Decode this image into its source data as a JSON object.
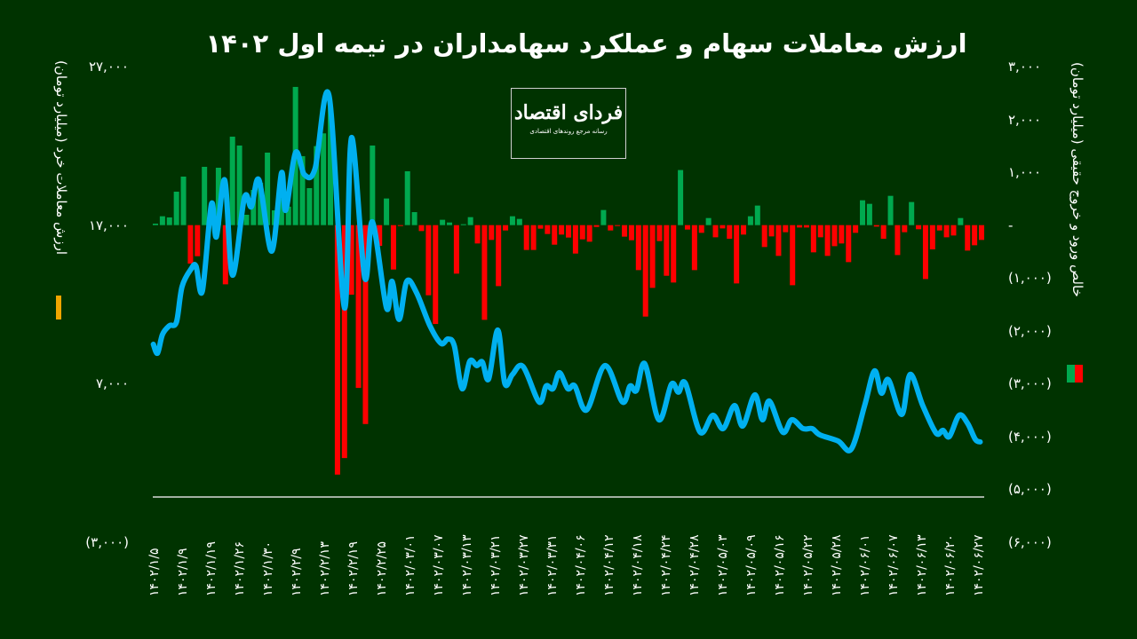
{
  "title": "ارزش معاملات سهام و عملکرد سهامداران در نیمه اول ۱۴۰۲",
  "logo": {
    "main": "فردای اقتصاد",
    "sub": "رسانه مرجع روندهای اقتصادی"
  },
  "colors": {
    "background": "#003300",
    "line": "#00b0f0",
    "positive": "#00a94f",
    "negative": "#ff0000",
    "left_legend": "#f0a500"
  },
  "chart_data": {
    "type": "bar+line",
    "title": "ارزش معاملات سهام و عملکرد سهامداران در نیمه اول ۱۴۰۲",
    "left_axis": {
      "label": "ارزش معاملات خرد (میلیارد تومان)",
      "range": [
        -3000,
        27000
      ],
      "ticks": [
        {
          "v": 27000,
          "label": "۲۷,۰۰۰"
        },
        {
          "v": 17000,
          "label": "۱۷,۰۰۰"
        },
        {
          "v": 7000,
          "label": "۷,۰۰۰"
        },
        {
          "v": -3000,
          "label": "(۳,۰۰۰)"
        }
      ]
    },
    "right_axis": {
      "label": "خالص ورود و خروج حقیقی (میلیارد تومان)",
      "range": [
        -6000,
        3000
      ],
      "ticks": [
        {
          "v": 3000,
          "label": "۳,۰۰۰"
        },
        {
          "v": 2000,
          "label": "۲,۰۰۰"
        },
        {
          "v": 1000,
          "label": "۱,۰۰۰"
        },
        {
          "v": 0,
          "label": "-"
        },
        {
          "v": -1000,
          "label": "(۱,۰۰۰)"
        },
        {
          "v": -2000,
          "label": "(۲,۰۰۰)"
        },
        {
          "v": -3000,
          "label": "(۳,۰۰۰)"
        },
        {
          "v": -4000,
          "label": "(۴,۰۰۰)"
        },
        {
          "v": -5000,
          "label": "(۵,۰۰۰)"
        },
        {
          "v": -6000,
          "label": "(۶,۰۰۰)"
        }
      ]
    },
    "x_tick_labels": [
      "۱۴۰۲/۱/۵",
      "۱۴۰۲/۱/۹",
      "۱۴۰۲/۱/۱۹",
      "۱۴۰۲/۱/۲۶",
      "۱۴۰۲/۱/۳۰",
      "۱۴۰۲/۲/۹",
      "۱۴۰۲/۲/۱۳",
      "۱۴۰۲/۲/۱۹",
      "۱۴۰۲/۲/۲۵",
      "۱۴۰۲/۰۳/۰۱",
      "۱۴۰۲/۰۳/۰۷",
      "۱۴۰۲/۰۳/۱۳",
      "۱۴۰۲/۰۳/۲۱",
      "۱۴۰۲/۰۳/۲۷",
      "۱۴۰۲/۰۳/۳۱",
      "۱۴۰۲/۰۴/۰۶",
      "۱۴۰۲/۰۴/۱۲",
      "۱۴۰۲/۰۴/۱۸",
      "۱۴۰۲/۰۴/۲۴",
      "۱۴۰۲/۰۴/۲۸",
      "۱۴۰۲/۰۵/۰۳",
      "۱۴۰۲/۰۵/۰۹",
      "۱۴۰۲/۰۵/۱۶",
      "۱۴۰۲/۰۵/۲۲",
      "۱۴۰۲/۰۵/۲۸",
      "۱۴۰۲/۰۶/۰۱",
      "۱۴۰۲/۰۶/۰۷",
      "۱۴۰۲/۰۶/۱۳",
      "۱۴۰۲/۰۶/۲۰",
      "۱۴۰۲/۰۶/۲۷"
    ],
    "bars_net_flow": [
      28,
      168,
      146,
      633,
      918,
      -728,
      -588,
      1103,
      300,
      1086,
      -1120,
      1674,
      1506,
      196,
      666,
      800,
      1372,
      280,
      500,
      350,
      2615,
      1305,
      700,
      1495,
      1736,
      2240,
      -4720,
      -4407,
      -1316,
      -3080,
      -3763,
      1506,
      -392,
      504,
      -840,
      -10,
      1019,
      246,
      -112,
      -1327,
      -1870,
      101,
      50,
      -918,
      17,
      151,
      -347,
      -1792,
      -280,
      -1154,
      -101,
      168,
      118,
      -470,
      -470,
      -67,
      -168,
      -370,
      -179,
      -235,
      -538,
      -269,
      -314,
      -34,
      286,
      -101,
      -11,
      -218,
      -286,
      -851,
      -1730,
      -1187,
      -302,
      -958,
      -1086,
      1042,
      -84,
      -851,
      -146,
      134,
      -230,
      -62,
      -258,
      -1103,
      -179,
      168,
      370,
      -414,
      -213,
      -582,
      -134,
      -1137,
      -45,
      -45,
      -515,
      -230,
      -582,
      -398,
      -347,
      -700,
      -146,
      470,
      403,
      -28,
      -258,
      554,
      -566,
      -134,
      437,
      -78,
      -1020,
      -459,
      -101,
      -230,
      -196,
      134,
      -482,
      -381,
      -280
    ],
    "line_trade_value": [
      [
        -0.3,
        9485
      ],
      [
        0.3,
        8925
      ],
      [
        1,
        10100
      ],
      [
        2,
        10660
      ],
      [
        3,
        10884
      ],
      [
        3.8,
        13122
      ],
      [
        5.1,
        14241
      ],
      [
        5.8,
        14409
      ],
      [
        6.7,
        12842
      ],
      [
        8,
        18326
      ],
      [
        8.7,
        16256
      ],
      [
        9.9,
        19837
      ],
      [
        11,
        13849
      ],
      [
        12.7,
        18718
      ],
      [
        13.7,
        18158
      ],
      [
        14.8,
        19837
      ],
      [
        16.6,
        15360
      ],
      [
        18,
        20285
      ],
      [
        18.6,
        17934
      ],
      [
        20,
        21572
      ],
      [
        21.3,
        20173
      ],
      [
        22.8,
        20565
      ],
      [
        24.8,
        25153
      ],
      [
        27,
        11779
      ],
      [
        28,
        22523
      ],
      [
        29.9,
        13681
      ],
      [
        31,
        17207
      ],
      [
        33,
        11779
      ],
      [
        33.8,
        13457
      ],
      [
        34.8,
        11051
      ],
      [
        35.9,
        13457
      ],
      [
        37.3,
        12730
      ],
      [
        39.2,
        10660
      ],
      [
        40.8,
        9540
      ],
      [
        41.8,
        9820
      ],
      [
        42.7,
        9373
      ],
      [
        43.8,
        6687
      ],
      [
        44.9,
        8421
      ],
      [
        45.9,
        8141
      ],
      [
        46.7,
        8365
      ],
      [
        47.6,
        7302
      ],
      [
        48.9,
        10380
      ],
      [
        49.9,
        7022
      ],
      [
        51,
        7582
      ],
      [
        52.5,
        8086
      ],
      [
        54.8,
        5847
      ],
      [
        55.8,
        6854
      ],
      [
        56.8,
        6687
      ],
      [
        57.7,
        7694
      ],
      [
        58.9,
        6687
      ],
      [
        59.9,
        6854
      ],
      [
        61.6,
        5343
      ],
      [
        64.2,
        8141
      ],
      [
        66.7,
        5847
      ],
      [
        67.8,
        6854
      ],
      [
        68.7,
        6575
      ],
      [
        69.9,
        8253
      ],
      [
        71.9,
        4728
      ],
      [
        73.7,
        6966
      ],
      [
        74.7,
        6463
      ],
      [
        75.7,
        7022
      ],
      [
        77.8,
        3944
      ],
      [
        79.6,
        5007
      ],
      [
        81.1,
        4168
      ],
      [
        82.7,
        5623
      ],
      [
        83.9,
        4336
      ],
      [
        85.6,
        6295
      ],
      [
        86.7,
        4728
      ],
      [
        87.7,
        5903
      ],
      [
        89.6,
        3944
      ],
      [
        90.9,
        4728
      ],
      [
        92.5,
        4168
      ],
      [
        93.8,
        4168
      ],
      [
        94.9,
        3776
      ],
      [
        97.5,
        3385
      ],
      [
        99.4,
        2881
      ],
      [
        101.3,
        5623
      ],
      [
        102.7,
        7806
      ],
      [
        103.7,
        6407
      ],
      [
        104.7,
        7246
      ],
      [
        106.6,
        5064
      ],
      [
        107.8,
        7582
      ],
      [
        109.6,
        5623
      ],
      [
        111.5,
        3888
      ],
      [
        112.5,
        4056
      ],
      [
        113.4,
        3664
      ],
      [
        114.8,
        5007
      ],
      [
        116,
        4504
      ],
      [
        117.1,
        3497
      ],
      [
        117.8,
        3329
      ]
    ],
    "grid": false
  }
}
